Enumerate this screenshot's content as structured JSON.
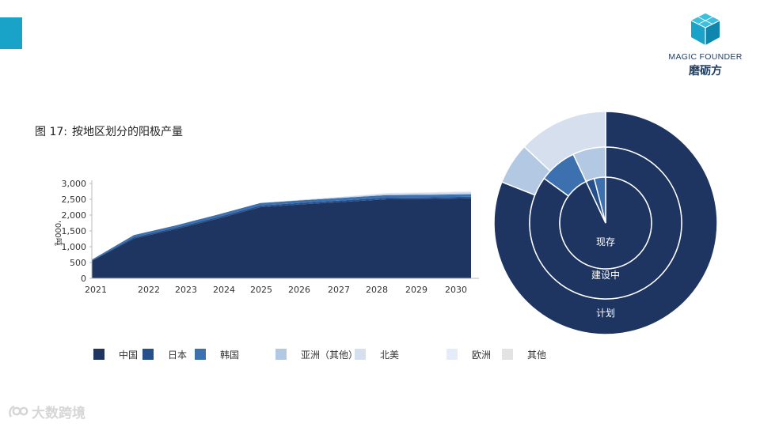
{
  "header": {
    "logo_en": "MAGIC FOUNDER",
    "logo_cn": "磨砺方",
    "accent_color": "#1aa3c8",
    "logo_icon": "cube-icon"
  },
  "figure": {
    "prefix": "图 17:",
    "title": "按地区划分的阳极产量"
  },
  "watermark": {
    "text": "大数跨境",
    "icon": "watermark-logo-icon"
  },
  "chart_data": [
    {
      "type": "area",
      "stacked": true,
      "ylabel": "'000吨",
      "ylim": [
        0,
        3000
      ],
      "yticks": [
        "0",
        "500",
        "1,000",
        "1,500",
        "2,000",
        "2,500",
        "3,000"
      ],
      "ytick_values": [
        0,
        500,
        1000,
        1500,
        2000,
        2500,
        3000
      ],
      "xticks": [
        "2021",
        "2022",
        "2023",
        "2024",
        "2025",
        "2026",
        "2027",
        "2028",
        "2029",
        "2030"
      ],
      "x": [
        2021,
        2022,
        2023,
        2024,
        2025,
        2026,
        2027,
        2028,
        2029,
        2030
      ],
      "grid": false,
      "legend_position": "bottom",
      "series": [
        {
          "name": "中国",
          "color": "#1e3562",
          "values": [
            550,
            1260,
            1560,
            1890,
            2250,
            2340,
            2420,
            2500,
            2510,
            2530
          ]
        },
        {
          "name": "日本",
          "color": "#25508c",
          "values": [
            15,
            40,
            45,
            50,
            50,
            50,
            50,
            50,
            50,
            50
          ]
        },
        {
          "name": "韩国",
          "color": "#3d70ae",
          "values": [
            25,
            70,
            70,
            80,
            80,
            80,
            80,
            80,
            80,
            80
          ]
        },
        {
          "name": "亚洲（其他）",
          "color": "#b3c8e2",
          "values": [
            0,
            0,
            0,
            0,
            0,
            10,
            15,
            25,
            30,
            35
          ]
        },
        {
          "name": "北美",
          "color": "#d5dfee",
          "values": [
            0,
            0,
            0,
            0,
            0,
            10,
            20,
            30,
            35,
            40
          ]
        },
        {
          "name": "欧洲",
          "color": "#e6ecf7",
          "values": [
            0,
            0,
            0,
            0,
            0,
            0,
            5,
            10,
            12,
            15
          ]
        },
        {
          "name": "其他",
          "color": "#e3e3e3",
          "values": [
            0,
            0,
            0,
            0,
            0,
            0,
            0,
            5,
            5,
            5
          ]
        }
      ]
    },
    {
      "type": "pie",
      "subtype": "nested-donut",
      "rings": [
        {
          "label": "现存",
          "slices": [
            {
              "name": "中国",
              "value": 93,
              "color": "#1e3562"
            },
            {
              "name": "日本",
              "value": 3,
              "color": "#25508c"
            },
            {
              "name": "韩国",
              "value": 4,
              "color": "#3d70ae"
            }
          ]
        },
        {
          "label": "建设中",
          "slices": [
            {
              "name": "中国",
              "value": 85,
              "color": "#1e3562"
            },
            {
              "name": "韩国",
              "value": 8,
              "color": "#3d70ae"
            },
            {
              "name": "亚洲（其他）",
              "value": 7,
              "color": "#b3c8e2"
            }
          ]
        },
        {
          "label": "计划",
          "slices": [
            {
              "name": "中国",
              "value": 81,
              "color": "#1e3562"
            },
            {
              "name": "亚洲（其他）",
              "value": 6,
              "color": "#b3c8e2"
            },
            {
              "name": "北美",
              "value": 13,
              "color": "#d5dfee"
            }
          ]
        }
      ]
    }
  ]
}
